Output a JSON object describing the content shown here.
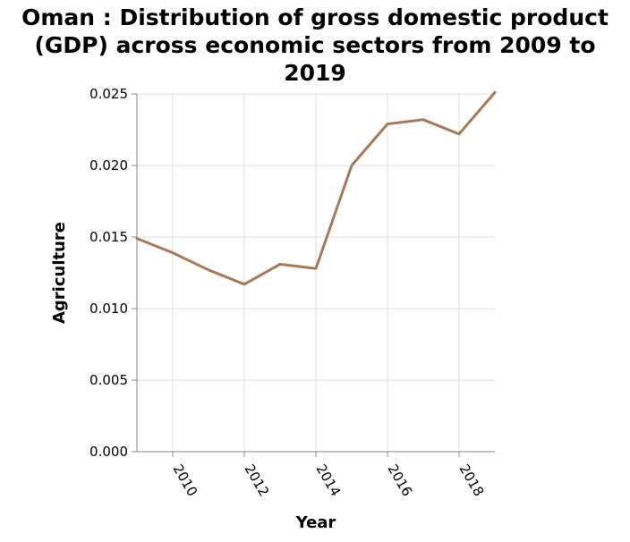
{
  "chart_data": {
    "type": "line",
    "title_lines": [
      "Oman : Distribution of gross domestic product",
      "(GDP) across economic sectors from 2009 to",
      "2019"
    ],
    "xlabel": "Year",
    "ylabel": "Agriculture",
    "xlim": [
      2009,
      2019
    ],
    "ylim": [
      0,
      0.025
    ],
    "x_ticks": [
      2010,
      2012,
      2014,
      2016,
      2018
    ],
    "y_ticks": [
      "0.000",
      "0.005",
      "0.010",
      "0.015",
      "0.020",
      "0.025"
    ],
    "grid": true,
    "line_color": "#a47a5f",
    "series": [
      {
        "x": [
          2009,
          2010,
          2011,
          2012,
          2013,
          2014,
          2015,
          2016,
          2017,
          2018,
          2019
        ],
        "values": [
          0.0149,
          0.0139,
          0.0127,
          0.0117,
          0.0131,
          0.0128,
          0.02,
          0.0229,
          0.0232,
          0.0222,
          0.0251
        ]
      }
    ]
  }
}
